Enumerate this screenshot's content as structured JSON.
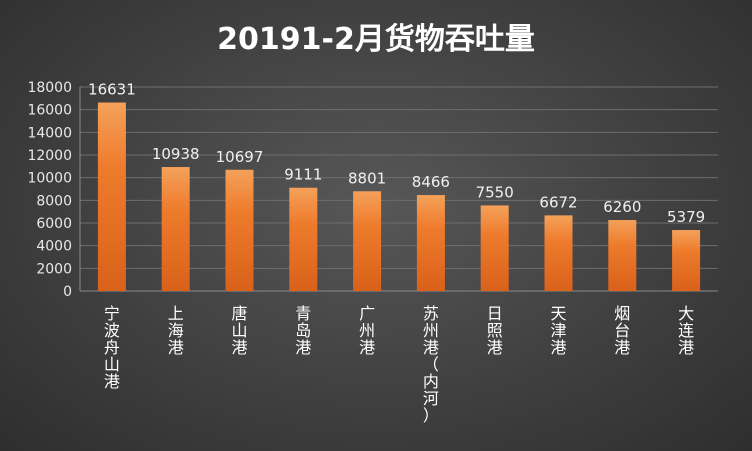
{
  "chart_data": {
    "type": "bar",
    "title": "20191-2月货物吞吐量",
    "categories": [
      "宁波舟山港",
      "上海港",
      "唐山港",
      "青岛港",
      "广州港",
      "苏州港（内河）",
      "日照港",
      "天津港",
      "烟台港",
      "大连港"
    ],
    "values": [
      16631,
      10938,
      10697,
      9111,
      8801,
      8466,
      7550,
      6672,
      6260,
      5379
    ],
    "yticks": [
      "0",
      "2000",
      "4000",
      "6000",
      "8000",
      "10000",
      "12000",
      "14000",
      "16000",
      "18000"
    ],
    "ylim": [
      0,
      18000
    ],
    "xlabel": "",
    "ylabel": "",
    "grid": true,
    "legend": "none",
    "bar_color_top": "#f4a15a",
    "bar_color_mid": "#ee7b2c",
    "bar_color_bottom": "#d9611a"
  }
}
